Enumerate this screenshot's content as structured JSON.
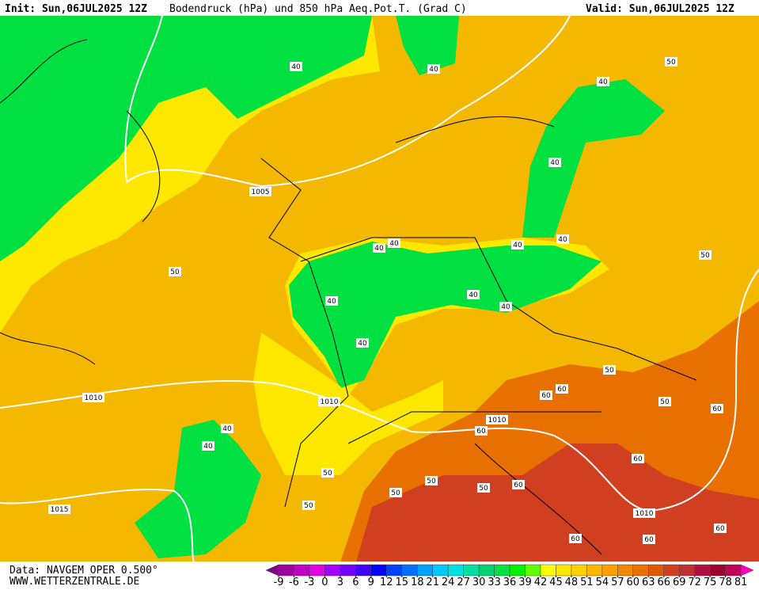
{
  "header": {
    "init": "Init: Sun,06JUL2025 12Z",
    "title": "Bodendruck (hPa) und 850 hPa Aeq.Pot.T. (Grad C)",
    "valid": "Valid: Sun,06JUL2025 12Z"
  },
  "footer": {
    "data": "Data: NAVGEM OPER 0.500°",
    "url": "WWW.WETTERZENTRALE.DE"
  },
  "contour_labels": [
    40,
    40,
    40,
    50,
    40,
    1005,
    40,
    40,
    40,
    40,
    50,
    50,
    40,
    40,
    40,
    40,
    50,
    60,
    60,
    1010,
    1010,
    50,
    60,
    1010,
    60,
    40,
    40,
    60,
    50,
    50,
    50,
    60,
    50,
    50,
    1015,
    1010,
    60,
    60,
    60
  ],
  "colorbar": {
    "values": [
      -9,
      -6,
      -3,
      0,
      3,
      6,
      9,
      12,
      15,
      18,
      21,
      24,
      27,
      30,
      33,
      36,
      39,
      42,
      45,
      48,
      51,
      54,
      57,
      60,
      63,
      66,
      69,
      72,
      75,
      78,
      81
    ],
    "colors": [
      "#800080",
      "#9b009b",
      "#c000c0",
      "#e000e0",
      "#a000ff",
      "#7000ff",
      "#4000ff",
      "#0000ff",
      "#0040ff",
      "#0070ff",
      "#00a0ff",
      "#00c8ff",
      "#00e0e0",
      "#00e0a0",
      "#00d070",
      "#00e040",
      "#00f000",
      "#60ff00",
      "#ffff00",
      "#ffe800",
      "#ffd000",
      "#ffb800",
      "#ffa000",
      "#f08800",
      "#e87000",
      "#e05800",
      "#d04020",
      "#c03030",
      "#b01040",
      "#a00030",
      "#c00050",
      "#ff00c0"
    ]
  }
}
